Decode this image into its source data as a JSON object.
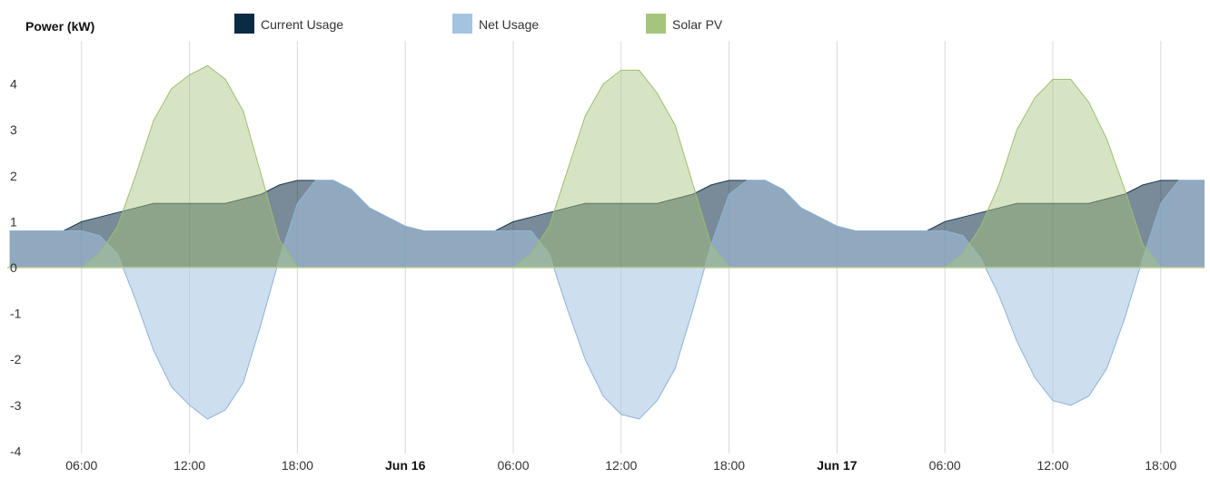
{
  "chart_data": {
    "type": "area",
    "ylabel": "Power (kW)",
    "ylim": [
      -4,
      4.5
    ],
    "yticks": [
      "4",
      "3",
      "2",
      "1",
      "0",
      "-1",
      "-2",
      "-3",
      "-4"
    ],
    "xlim": [
      0,
      79
    ],
    "xticks": [
      {
        "h": 6,
        "label": "06:00",
        "bold": false
      },
      {
        "h": 12,
        "label": "12:00",
        "bold": false
      },
      {
        "h": 18,
        "label": "18:00",
        "bold": false
      },
      {
        "h": 24,
        "label": "Jun 16",
        "bold": true
      },
      {
        "h": 30,
        "label": "06:00",
        "bold": false
      },
      {
        "h": 36,
        "label": "12:00",
        "bold": false
      },
      {
        "h": 42,
        "label": "18:00",
        "bold": false
      },
      {
        "h": 48,
        "label": "Jun 17",
        "bold": true
      },
      {
        "h": 54,
        "label": "06:00",
        "bold": false
      },
      {
        "h": 60,
        "label": "12:00",
        "bold": false
      },
      {
        "h": 66,
        "label": "18:00",
        "bold": false
      }
    ],
    "grid": "vertical",
    "legend_position": "top",
    "series": [
      {
        "name": "Current Usage",
        "color": "#0b2a44",
        "x": [
          2,
          3,
          4,
          5,
          6,
          7,
          8,
          10,
          14,
          16,
          17,
          18,
          19,
          20,
          21,
          22,
          23,
          24,
          25,
          26,
          27,
          28,
          29,
          30,
          31,
          32,
          34,
          38,
          40,
          41,
          42,
          43,
          44,
          45,
          46,
          47,
          48,
          49,
          50,
          51,
          52,
          53,
          54,
          55,
          56,
          58,
          62,
          64,
          65,
          66,
          67,
          68,
          69,
          70,
          71
        ],
        "y": [
          0.8,
          0.8,
          0.8,
          0.8,
          1.0,
          1.1,
          1.2,
          1.4,
          1.4,
          1.6,
          1.8,
          1.9,
          1.9,
          1.9,
          1.7,
          1.3,
          1.1,
          0.9,
          0.8,
          0.8,
          0.8,
          0.8,
          0.8,
          1.0,
          1.1,
          1.2,
          1.4,
          1.4,
          1.6,
          1.8,
          1.9,
          1.9,
          1.9,
          1.7,
          1.3,
          1.1,
          0.9,
          0.8,
          0.8,
          0.8,
          0.8,
          0.8,
          1.0,
          1.1,
          1.2,
          1.4,
          1.4,
          1.6,
          1.8,
          1.9,
          1.9,
          1.9,
          1.9,
          1.9,
          1.9
        ]
      },
      {
        "name": "Net Usage",
        "color": "#a4c3e0",
        "x": [
          2,
          3,
          4,
          5,
          6,
          7,
          8,
          9,
          10,
          11,
          12,
          13,
          14,
          15,
          16,
          17,
          18,
          19,
          20,
          21,
          22,
          23,
          24,
          25,
          26,
          27,
          28,
          29,
          30,
          31,
          32,
          33,
          34,
          35,
          36,
          37,
          38,
          39,
          40,
          41,
          42,
          43,
          44,
          45,
          46,
          47,
          48,
          49,
          50,
          51,
          52,
          53,
          54,
          55,
          56,
          57,
          58,
          59,
          60,
          61,
          62,
          63,
          64,
          65,
          66,
          67,
          68,
          69,
          70,
          71
        ],
        "y": [
          0.8,
          0.8,
          0.8,
          0.8,
          0.8,
          0.7,
          0.3,
          -0.7,
          -1.8,
          -2.6,
          -3.0,
          -3.3,
          -3.1,
          -2.5,
          -1.2,
          0.2,
          1.4,
          1.9,
          1.9,
          1.7,
          1.3,
          1.1,
          0.9,
          0.8,
          0.8,
          0.8,
          0.8,
          0.8,
          0.8,
          0.8,
          0.3,
          -0.9,
          -2.0,
          -2.8,
          -3.2,
          -3.3,
          -2.9,
          -2.2,
          -0.9,
          0.5,
          1.6,
          1.9,
          1.9,
          1.7,
          1.3,
          1.1,
          0.9,
          0.8,
          0.8,
          0.8,
          0.8,
          0.8,
          0.8,
          0.7,
          0.2,
          -0.6,
          -1.6,
          -2.4,
          -2.9,
          -3.0,
          -2.8,
          -2.2,
          -1.1,
          0.2,
          1.4,
          1.9,
          1.9,
          1.9,
          1.9,
          1.9
        ]
      },
      {
        "name": "Solar PV",
        "color": "#a6c47c",
        "x": [
          2,
          3,
          4,
          5,
          6,
          7,
          8,
          9,
          10,
          11,
          12,
          13,
          14,
          15,
          16,
          17,
          18,
          19,
          20,
          21,
          22,
          23,
          24,
          25,
          26,
          27,
          28,
          29,
          30,
          31,
          32,
          33,
          34,
          35,
          36,
          37,
          38,
          39,
          40,
          41,
          42,
          43,
          44,
          45,
          46,
          47,
          48,
          49,
          50,
          51,
          52,
          53,
          54,
          55,
          56,
          57,
          58,
          59,
          60,
          61,
          62,
          63,
          64,
          65,
          66,
          67,
          68,
          69,
          70,
          71
        ],
        "y": [
          0,
          0,
          0,
          0,
          0,
          0.3,
          0.9,
          2.0,
          3.2,
          3.9,
          4.2,
          4.4,
          4.1,
          3.4,
          2.0,
          0.6,
          0,
          0,
          0,
          0,
          0,
          0,
          0,
          0,
          0,
          0,
          0,
          0,
          0,
          0.3,
          0.9,
          2.1,
          3.3,
          4.0,
          4.3,
          4.3,
          3.8,
          3.1,
          1.8,
          0.5,
          0,
          0,
          0,
          0,
          0,
          0,
          0,
          0,
          0,
          0,
          0,
          0,
          0,
          0.3,
          0.9,
          1.8,
          3.0,
          3.7,
          4.1,
          4.1,
          3.6,
          2.8,
          1.7,
          0.5,
          0,
          0,
          0,
          0,
          0,
          0
        ]
      }
    ]
  }
}
